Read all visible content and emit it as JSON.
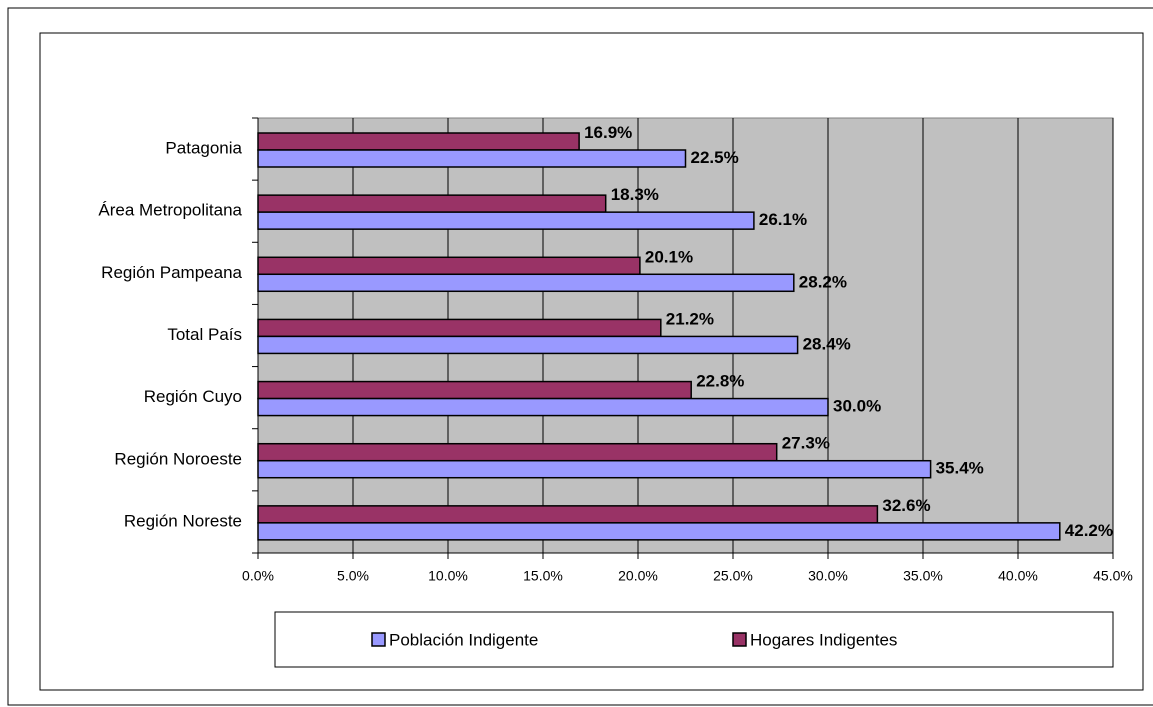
{
  "chart_data": {
    "type": "bar",
    "orientation": "horizontal",
    "categories": [
      "Patagonia",
      "Área Metropolitana",
      "Región Pampeana",
      "Total País",
      "Región Cuyo",
      "Región Noroeste",
      "Región Noreste"
    ],
    "series": [
      {
        "name": "Población Indigente",
        "color": "#9999ff",
        "values": [
          22.5,
          26.1,
          28.2,
          28.4,
          30.0,
          35.4,
          42.2
        ],
        "value_labels": [
          "22.5%",
          "26.1%",
          "28.2%",
          "28.4%",
          "30.0%",
          "35.4%",
          "42.2%"
        ]
      },
      {
        "name": "Hogares Indigentes",
        "color": "#993366",
        "values": [
          16.9,
          18.3,
          20.1,
          21.2,
          22.8,
          27.3,
          32.6
        ],
        "value_labels": [
          "16.9%",
          "18.3%",
          "20.1%",
          "21.2%",
          "22.8%",
          "27.3%",
          "32.6%"
        ]
      }
    ],
    "xlim": [
      0,
      45
    ],
    "xticks": [
      {
        "value": 0,
        "label": "0.0%"
      },
      {
        "value": 5,
        "label": "5.0%"
      },
      {
        "value": 10,
        "label": "10.0%"
      },
      {
        "value": 15,
        "label": "15.0%"
      },
      {
        "value": 20,
        "label": "20.0%"
      },
      {
        "value": 25,
        "label": "25.0%"
      },
      {
        "value": 30,
        "label": "30.0%"
      },
      {
        "value": 35,
        "label": "35.0%"
      },
      {
        "value": 40,
        "label": "40.0%"
      },
      {
        "value": 45,
        "label": "45.0%"
      }
    ],
    "grid": true,
    "plot_background": "#c0c0c0",
    "legend": "bottom"
  }
}
